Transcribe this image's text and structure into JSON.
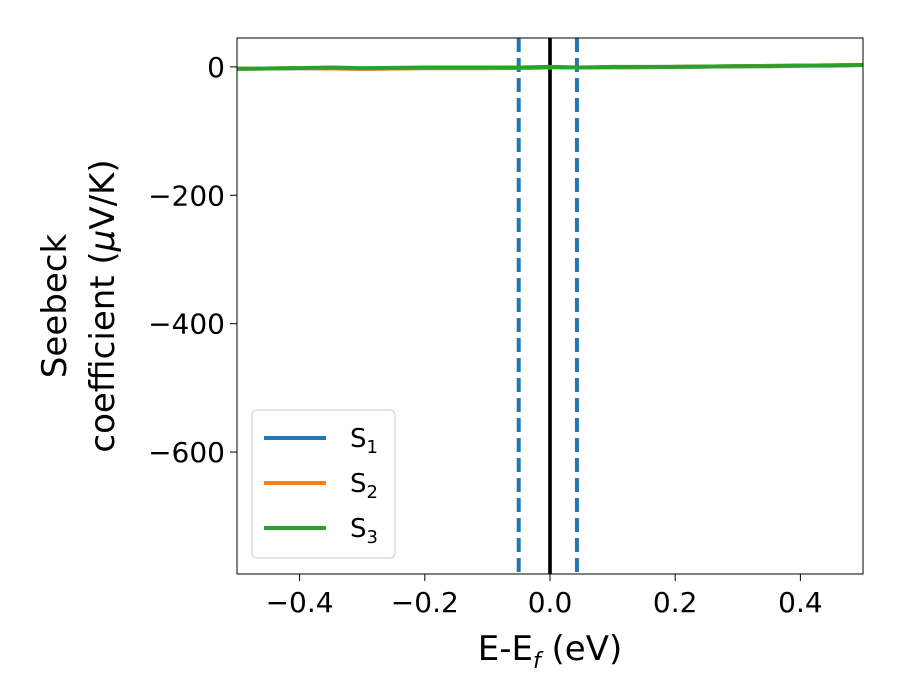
{
  "chart_data": {
    "type": "line",
    "title": "",
    "xlabel": {
      "main": "E-E",
      "sub": "f",
      "unit": " (eV)"
    },
    "ylabel": {
      "line1": "Seebeck",
      "line2": "coefficient  (",
      "mu": "μ",
      "unit": "V/K)"
    },
    "xlim": [
      -0.5,
      0.5
    ],
    "ylim": [
      -790,
      45
    ],
    "xticks": [
      {
        "value": -0.4,
        "label": "−0.4"
      },
      {
        "value": -0.2,
        "label": "−0.2"
      },
      {
        "value": 0.0,
        "label": "0.0"
      },
      {
        "value": 0.2,
        "label": "0.2"
      },
      {
        "value": 0.4,
        "label": "0.4"
      }
    ],
    "yticks": [
      {
        "value": 0,
        "label": "0"
      },
      {
        "value": -200,
        "label": "−200"
      },
      {
        "value": -400,
        "label": "−400"
      },
      {
        "value": -600,
        "label": "−600"
      }
    ],
    "grid": false,
    "legend_position": "lower-left",
    "series": [
      {
        "name": "S",
        "sub": "1",
        "color": "#1f77b4",
        "x": [
          -0.5,
          -0.4,
          -0.3,
          -0.2,
          -0.1,
          0.0,
          0.1,
          0.2,
          0.3,
          0.4,
          0.5
        ],
        "y": [
          -3,
          -2,
          -3,
          -2,
          -2,
          -1,
          -1,
          0,
          1,
          2,
          3
        ]
      },
      {
        "name": "S",
        "sub": "2",
        "color": "#ff7f0e",
        "x": [
          -0.5,
          -0.4,
          -0.3,
          -0.2,
          -0.1,
          0.0,
          0.1,
          0.2,
          0.3,
          0.4,
          0.5
        ],
        "y": [
          -3,
          -2,
          -3,
          -2,
          -2,
          -1,
          -1,
          0,
          1,
          2,
          3
        ]
      },
      {
        "name": "S",
        "sub": "3",
        "color": "#2ca02c",
        "x": [
          -0.5,
          -0.4,
          -0.35,
          -0.3,
          -0.2,
          -0.1,
          -0.05,
          0.0,
          0.05,
          0.1,
          0.2,
          0.3,
          0.35,
          0.4,
          0.45,
          0.5
        ],
        "y": [
          -3,
          -2,
          -1,
          -2,
          -1,
          -1,
          -1,
          0,
          -1,
          0,
          0,
          1,
          1,
          2,
          2,
          3
        ]
      }
    ],
    "vlines": [
      {
        "x": -0.05,
        "color": "#1f77b4",
        "style": "dashed"
      },
      {
        "x": 0.0,
        "color": "#1f77b4",
        "style": "solid"
      },
      {
        "x": 0.0,
        "color": "#000000",
        "style": "solid"
      },
      {
        "x": 0.043,
        "color": "#1f77b4",
        "style": "dashed"
      }
    ]
  }
}
